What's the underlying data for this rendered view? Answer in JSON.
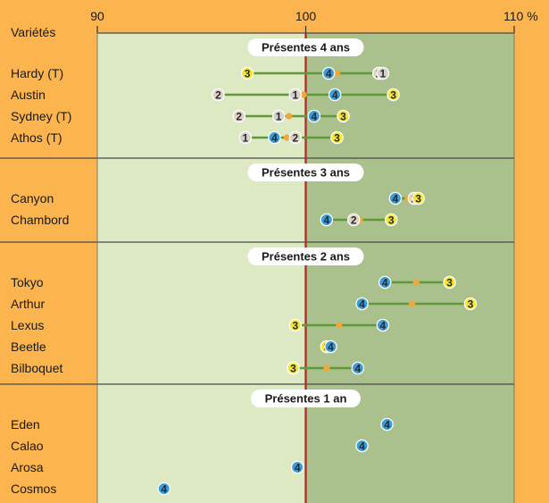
{
  "chart_data": {
    "type": "scatter",
    "subtype": "dot-range",
    "row_label_header": "Variétés",
    "axis": {
      "min": 90,
      "max": 110,
      "ticks": [
        {
          "value": 90,
          "label": "90"
        },
        {
          "value": 100,
          "label": "100"
        },
        {
          "value": 110,
          "label": "110 %"
        }
      ],
      "reference_line": 100
    },
    "point_categories": [
      {
        "id": "1",
        "color": "#d9cfc9"
      },
      {
        "id": "2",
        "color": "#e2d2c4"
      },
      {
        "id": "3",
        "color": "#f7e52e"
      },
      {
        "id": "4",
        "color": "#3d9bd6"
      }
    ],
    "mean_marker_color": "#f3a63a",
    "groups": [
      {
        "title": "Présentes 4 ans",
        "rows": [
          {
            "name": "Hardy  (T)",
            "points": [
              {
                "k": "3",
                "v": 97.2
              },
              {
                "k": "4",
                "v": 101.1
              },
              {
                "k": "2",
                "v": 103.5
              },
              {
                "k": "1",
                "v": 103.7
              }
            ],
            "mean": 101.5
          },
          {
            "name": "Austin",
            "points": [
              {
                "k": "2",
                "v": 95.8
              },
              {
                "k": "1",
                "v": 99.5
              },
              {
                "k": "4",
                "v": 101.4
              },
              {
                "k": "3",
                "v": 104.2
              }
            ],
            "mean": 99.9
          },
          {
            "name": "Sydney (T)",
            "points": [
              {
                "k": "2",
                "v": 96.8
              },
              {
                "k": "1",
                "v": 98.7
              },
              {
                "k": "4",
                "v": 100.4
              },
              {
                "k": "3",
                "v": 101.8
              }
            ],
            "mean": 99.2
          },
          {
            "name": "Athos (T)",
            "points": [
              {
                "k": "1",
                "v": 97.1
              },
              {
                "k": "4",
                "v": 98.5
              },
              {
                "k": "2",
                "v": 99.5
              },
              {
                "k": "3",
                "v": 101.5
              }
            ],
            "mean": 99.1
          }
        ]
      },
      {
        "title": "Présentes 3 ans",
        "rows": [
          {
            "name": "Canyon",
            "points": [
              {
                "k": "4",
                "v": 104.3
              },
              {
                "k": "2",
                "v": 105.2
              },
              {
                "k": "3",
                "v": 105.4
              }
            ],
            "mean": 104.9
          },
          {
            "name": "Chambord",
            "points": [
              {
                "k": "4",
                "v": 101
              },
              {
                "k": "2",
                "v": 102.3
              },
              {
                "k": "3",
                "v": 104.1
              }
            ],
            "mean": 102.6
          }
        ]
      },
      {
        "title": "Présentes 2 ans",
        "rows": [
          {
            "name": "Tokyo",
            "points": [
              {
                "k": "4",
                "v": 103.8
              },
              {
                "k": "3",
                "v": 106.9
              }
            ],
            "mean": 105.3
          },
          {
            "name": "Arthur",
            "points": [
              {
                "k": "4",
                "v": 102.7
              },
              {
                "k": "3",
                "v": 107.9
              }
            ],
            "mean": 105.1
          },
          {
            "name": "Lexus",
            "points": [
              {
                "k": "3",
                "v": 99.5
              },
              {
                "k": "4",
                "v": 103.7
              }
            ],
            "mean": 101.6
          },
          {
            "name": "Beetle",
            "points": [
              {
                "k": "3",
                "v": 101
              },
              {
                "k": "4",
                "v": 101.2
              }
            ],
            "mean": 101.1
          },
          {
            "name": "Bilboquet",
            "points": [
              {
                "k": "3",
                "v": 99.4
              },
              {
                "k": "4",
                "v": 102.5
              }
            ],
            "mean": 101
          }
        ]
      },
      {
        "title": "Présentes 1 an",
        "rows": [
          {
            "name": "Eden",
            "points": [
              {
                "k": "4",
                "v": 103.9
              }
            ],
            "mean": null
          },
          {
            "name": "Calao",
            "points": [
              {
                "k": "4",
                "v": 102.7
              }
            ],
            "mean": null
          },
          {
            "name": "Arosa",
            "points": [
              {
                "k": "4",
                "v": 99.6
              }
            ],
            "mean": null
          },
          {
            "name": "Cosmos",
            "points": [
              {
                "k": "4",
                "v": 93.2
              }
            ],
            "mean": null
          }
        ]
      }
    ],
    "colors": {
      "page_background": "#fbb44e",
      "plot_left": "#dde9c2",
      "plot_right": "#aac08d",
      "range_line": "#5e9a3a",
      "reference_line": "#c0282b",
      "separator": "#4a4a4a"
    }
  }
}
